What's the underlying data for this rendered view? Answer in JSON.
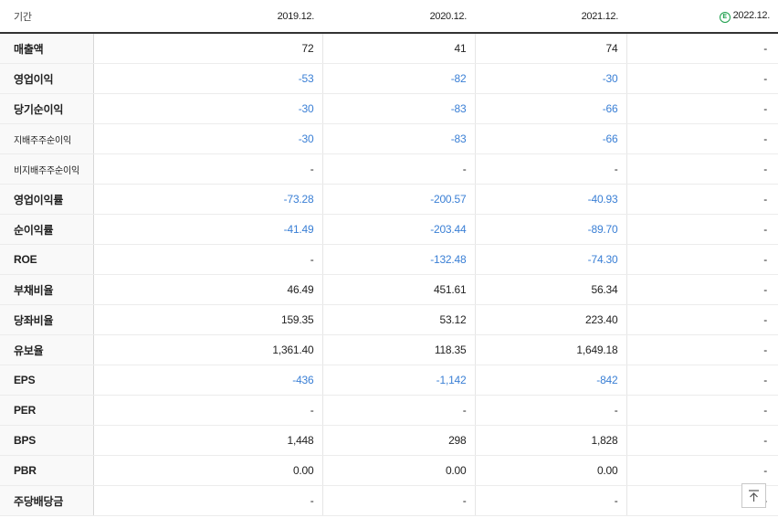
{
  "header": {
    "label": "기간",
    "periods": [
      "2019.12.",
      "2020.12.",
      "2021.12.",
      "2022.12."
    ],
    "estimate_badge": "E"
  },
  "rows": [
    {
      "label": "매출액",
      "values": [
        "72",
        "41",
        "74",
        "-"
      ]
    },
    {
      "label": "영업이익",
      "values": [
        "-53",
        "-82",
        "-30",
        "-"
      ]
    },
    {
      "label": "당기순이익",
      "values": [
        "-30",
        "-83",
        "-66",
        "-"
      ]
    },
    {
      "label": "지배주주순이익",
      "values": [
        "-30",
        "-83",
        "-66",
        "-"
      ]
    },
    {
      "label": "비지배주주순이익",
      "values": [
        "-",
        "-",
        "-",
        "-"
      ]
    },
    {
      "label": "영업이익률",
      "values": [
        "-73.28",
        "-200.57",
        "-40.93",
        "-"
      ]
    },
    {
      "label": "순이익률",
      "values": [
        "-41.49",
        "-203.44",
        "-89.70",
        "-"
      ]
    },
    {
      "label": "ROE",
      "values": [
        "-",
        "-132.48",
        "-74.30",
        "-"
      ]
    },
    {
      "label": "부채비율",
      "values": [
        "46.49",
        "451.61",
        "56.34",
        "-"
      ]
    },
    {
      "label": "당좌비율",
      "values": [
        "159.35",
        "53.12",
        "223.40",
        "-"
      ]
    },
    {
      "label": "유보율",
      "values": [
        "1,361.40",
        "118.35",
        "1,649.18",
        "-"
      ]
    },
    {
      "label": "EPS",
      "values": [
        "-436",
        "-1,142",
        "-842",
        "-"
      ]
    },
    {
      "label": "PER",
      "values": [
        "-",
        "-",
        "-",
        "-"
      ]
    },
    {
      "label": "BPS",
      "values": [
        "1,448",
        "298",
        "1,828",
        "-"
      ]
    },
    {
      "label": "PBR",
      "values": [
        "0.00",
        "0.00",
        "0.00",
        "-"
      ]
    },
    {
      "label": "주당배당금",
      "values": [
        "-",
        "-",
        "-",
        "-"
      ]
    }
  ],
  "colors": {
    "negative": "#3a7fd5",
    "estimate_badge": "#1a9e4a"
  },
  "icons": {
    "scroll_top": "arrow-up-to-line-icon"
  }
}
